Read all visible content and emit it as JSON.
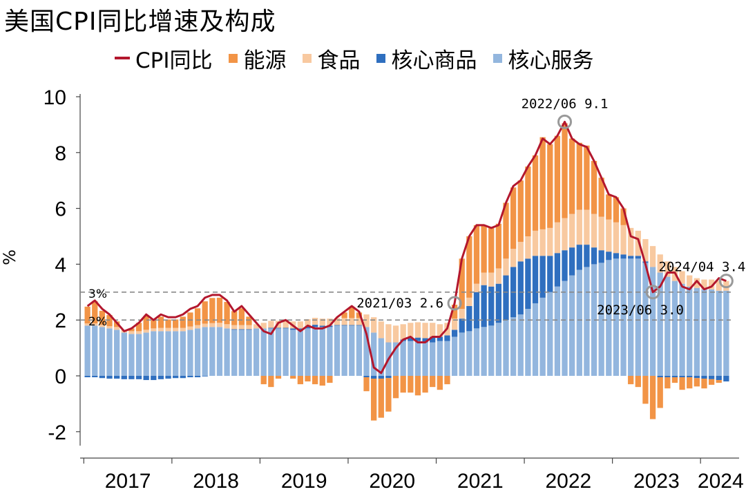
{
  "title": "美国CPI同比增速及构成",
  "legend": [
    {
      "label": "CPI同比",
      "type": "line",
      "color": "#b3172d"
    },
    {
      "label": "能源",
      "type": "box",
      "color": "#f29446"
    },
    {
      "label": "食品",
      "type": "box",
      "color": "#f8c9a0"
    },
    {
      "label": "核心商品",
      "type": "box",
      "color": "#2f6fbf"
    },
    {
      "label": "核心服务",
      "type": "box",
      "color": "#93b6de"
    }
  ],
  "colors": {
    "cpi": "#b3172d",
    "energy": "#f29446",
    "food": "#f8c9a0",
    "core_goods": "#2f6fbf",
    "core_services": "#93b6de",
    "ref_line": "#888888",
    "marker": "#999999"
  },
  "chart_data": {
    "type": "bar",
    "stacked": true,
    "title": "美国CPI同比增速及构成",
    "ylabel": "%",
    "ylim": [
      -2.5,
      10
    ],
    "yticks": [
      "-2",
      "0",
      "2",
      "4",
      "6",
      "8",
      "10"
    ],
    "x_labels": [
      "2017",
      "2018",
      "2019",
      "2020",
      "2021",
      "2022",
      "2023",
      "2024"
    ],
    "x_start": "2017-01",
    "x_end": "2024-04",
    "reference_lines": [
      {
        "value": 3,
        "label": "3%"
      },
      {
        "value": 2,
        "label": "2%"
      }
    ],
    "annotations": [
      {
        "label": "2022/06 9.1",
        "date": "2022-06",
        "value": 9.1
      },
      {
        "label": "2021/03 2.6",
        "date": "2021-03",
        "value": 2.6
      },
      {
        "label": "2023/06 3.0",
        "date": "2023-06",
        "value": 3.0
      },
      {
        "label": "2024/04 3.4",
        "date": "2024-04",
        "value": 3.4
      }
    ],
    "series": [
      {
        "name": "CPI同比",
        "type": "line",
        "values": [
          2.5,
          2.7,
          2.4,
          2.2,
          1.9,
          1.6,
          1.7,
          1.9,
          2.2,
          2.0,
          2.2,
          2.1,
          2.1,
          2.2,
          2.4,
          2.5,
          2.8,
          2.9,
          2.9,
          2.7,
          2.3,
          2.5,
          2.2,
          1.9,
          1.6,
          1.5,
          1.9,
          2.0,
          1.8,
          1.6,
          1.8,
          1.7,
          1.7,
          1.8,
          2.1,
          2.3,
          2.5,
          2.3,
          1.5,
          0.3,
          0.1,
          0.6,
          1.0,
          1.3,
          1.4,
          1.2,
          1.2,
          1.4,
          1.4,
          1.7,
          2.6,
          4.2,
          5.0,
          5.4,
          5.4,
          5.3,
          5.4,
          6.2,
          6.8,
          7.0,
          7.5,
          7.9,
          8.5,
          8.3,
          8.6,
          9.1,
          8.5,
          8.3,
          8.2,
          7.7,
          7.1,
          6.5,
          6.4,
          6.0,
          5.0,
          4.9,
          4.0,
          3.0,
          3.2,
          3.7,
          3.7,
          3.2,
          3.1,
          3.4,
          3.1,
          3.2,
          3.5,
          3.4
        ]
      },
      {
        "name": "核心服务",
        "values": [
          1.8,
          1.8,
          1.75,
          1.7,
          1.65,
          1.55,
          1.5,
          1.5,
          1.55,
          1.6,
          1.6,
          1.6,
          1.6,
          1.6,
          1.65,
          1.7,
          1.75,
          1.75,
          1.75,
          1.7,
          1.65,
          1.65,
          1.65,
          1.7,
          1.7,
          1.7,
          1.7,
          1.7,
          1.65,
          1.65,
          1.7,
          1.75,
          1.75,
          1.75,
          1.8,
          1.8,
          1.8,
          1.8,
          1.75,
          1.55,
          1.35,
          1.2,
          1.2,
          1.25,
          1.25,
          1.25,
          1.2,
          1.2,
          1.25,
          1.25,
          1.4,
          1.55,
          1.6,
          1.7,
          1.75,
          1.8,
          1.9,
          2.0,
          2.1,
          2.2,
          2.4,
          2.6,
          2.8,
          3.0,
          3.2,
          3.4,
          3.6,
          3.8,
          3.9,
          4.0,
          4.05,
          4.15,
          4.2,
          4.2,
          4.2,
          4.2,
          4.05,
          3.9,
          3.7,
          3.55,
          3.4,
          3.3,
          3.2,
          3.15,
          3.1,
          3.1,
          3.05,
          3.05
        ]
      },
      {
        "name": "核心商品",
        "values": [
          -0.05,
          -0.05,
          -0.08,
          -0.1,
          -0.1,
          -0.12,
          -0.12,
          -0.12,
          -0.15,
          -0.15,
          -0.12,
          -0.1,
          -0.08,
          -0.08,
          -0.05,
          -0.05,
          -0.02,
          0.0,
          0.0,
          0.0,
          0.02,
          0.02,
          0.02,
          0.0,
          0.0,
          0.02,
          0.02,
          0.02,
          0.05,
          0.05,
          0.08,
          0.08,
          0.05,
          0.05,
          0.02,
          0.02,
          0.02,
          0.02,
          -0.05,
          -0.1,
          -0.1,
          -0.08,
          0.0,
          0.05,
          0.1,
          0.12,
          0.15,
          0.2,
          0.15,
          0.2,
          0.25,
          0.5,
          0.9,
          1.3,
          1.5,
          1.4,
          1.4,
          1.6,
          1.8,
          1.9,
          1.8,
          1.7,
          1.5,
          1.3,
          1.2,
          1.1,
          1.0,
          0.9,
          0.8,
          0.6,
          0.45,
          0.3,
          0.2,
          0.15,
          0.1,
          0.1,
          0.05,
          0.0,
          -0.05,
          -0.05,
          -0.05,
          -0.05,
          -0.05,
          -0.08,
          -0.1,
          -0.12,
          -0.15,
          -0.2
        ]
      },
      {
        "name": "食品",
        "values": [
          0.08,
          0.08,
          0.08,
          0.08,
          0.1,
          0.1,
          0.1,
          0.1,
          0.1,
          0.1,
          0.12,
          0.12,
          0.12,
          0.12,
          0.12,
          0.12,
          0.12,
          0.14,
          0.15,
          0.15,
          0.15,
          0.15,
          0.15,
          0.15,
          0.2,
          0.25,
          0.25,
          0.25,
          0.25,
          0.25,
          0.25,
          0.25,
          0.25,
          0.25,
          0.25,
          0.25,
          0.25,
          0.25,
          0.45,
          0.55,
          0.6,
          0.65,
          0.6,
          0.55,
          0.55,
          0.55,
          0.55,
          0.5,
          0.45,
          0.45,
          0.4,
          0.35,
          0.3,
          0.3,
          0.45,
          0.5,
          0.55,
          0.6,
          0.65,
          0.7,
          0.8,
          0.9,
          0.95,
          1.0,
          1.1,
          1.15,
          1.2,
          1.25,
          1.25,
          1.2,
          1.2,
          1.15,
          1.1,
          1.05,
          1.0,
          0.9,
          0.8,
          0.75,
          0.65,
          0.55,
          0.5,
          0.45,
          0.4,
          0.35,
          0.35,
          0.35,
          0.35,
          0.35
        ]
      },
      {
        "name": "能源",
        "values": [
          0.6,
          0.8,
          0.5,
          0.4,
          0.2,
          0.0,
          0.1,
          0.3,
          0.5,
          0.3,
          0.4,
          0.3,
          0.3,
          0.4,
          0.5,
          0.6,
          0.8,
          0.9,
          0.9,
          0.8,
          0.5,
          0.6,
          0.3,
          0.0,
          -0.3,
          -0.4,
          -0.1,
          0.0,
          -0.1,
          -0.3,
          -0.2,
          -0.3,
          -0.35,
          -0.25,
          0.0,
          0.2,
          0.4,
          0.2,
          -0.5,
          -1.5,
          -1.4,
          -1.2,
          -0.8,
          -0.6,
          -0.6,
          -0.7,
          -0.6,
          -0.4,
          -0.5,
          -0.3,
          0.5,
          1.8,
          2.2,
          2.1,
          1.7,
          1.6,
          1.6,
          2.0,
          2.2,
          2.2,
          2.5,
          2.7,
          3.3,
          3.0,
          3.1,
          3.4,
          2.7,
          2.4,
          2.3,
          1.9,
          1.4,
          0.9,
          0.9,
          0.6,
          -0.3,
          -0.4,
          -1.0,
          -1.55,
          -1.1,
          -0.4,
          -0.2,
          -0.45,
          -0.4,
          -0.3,
          -0.35,
          -0.2,
          -0.1,
          0.0
        ]
      }
    ]
  }
}
